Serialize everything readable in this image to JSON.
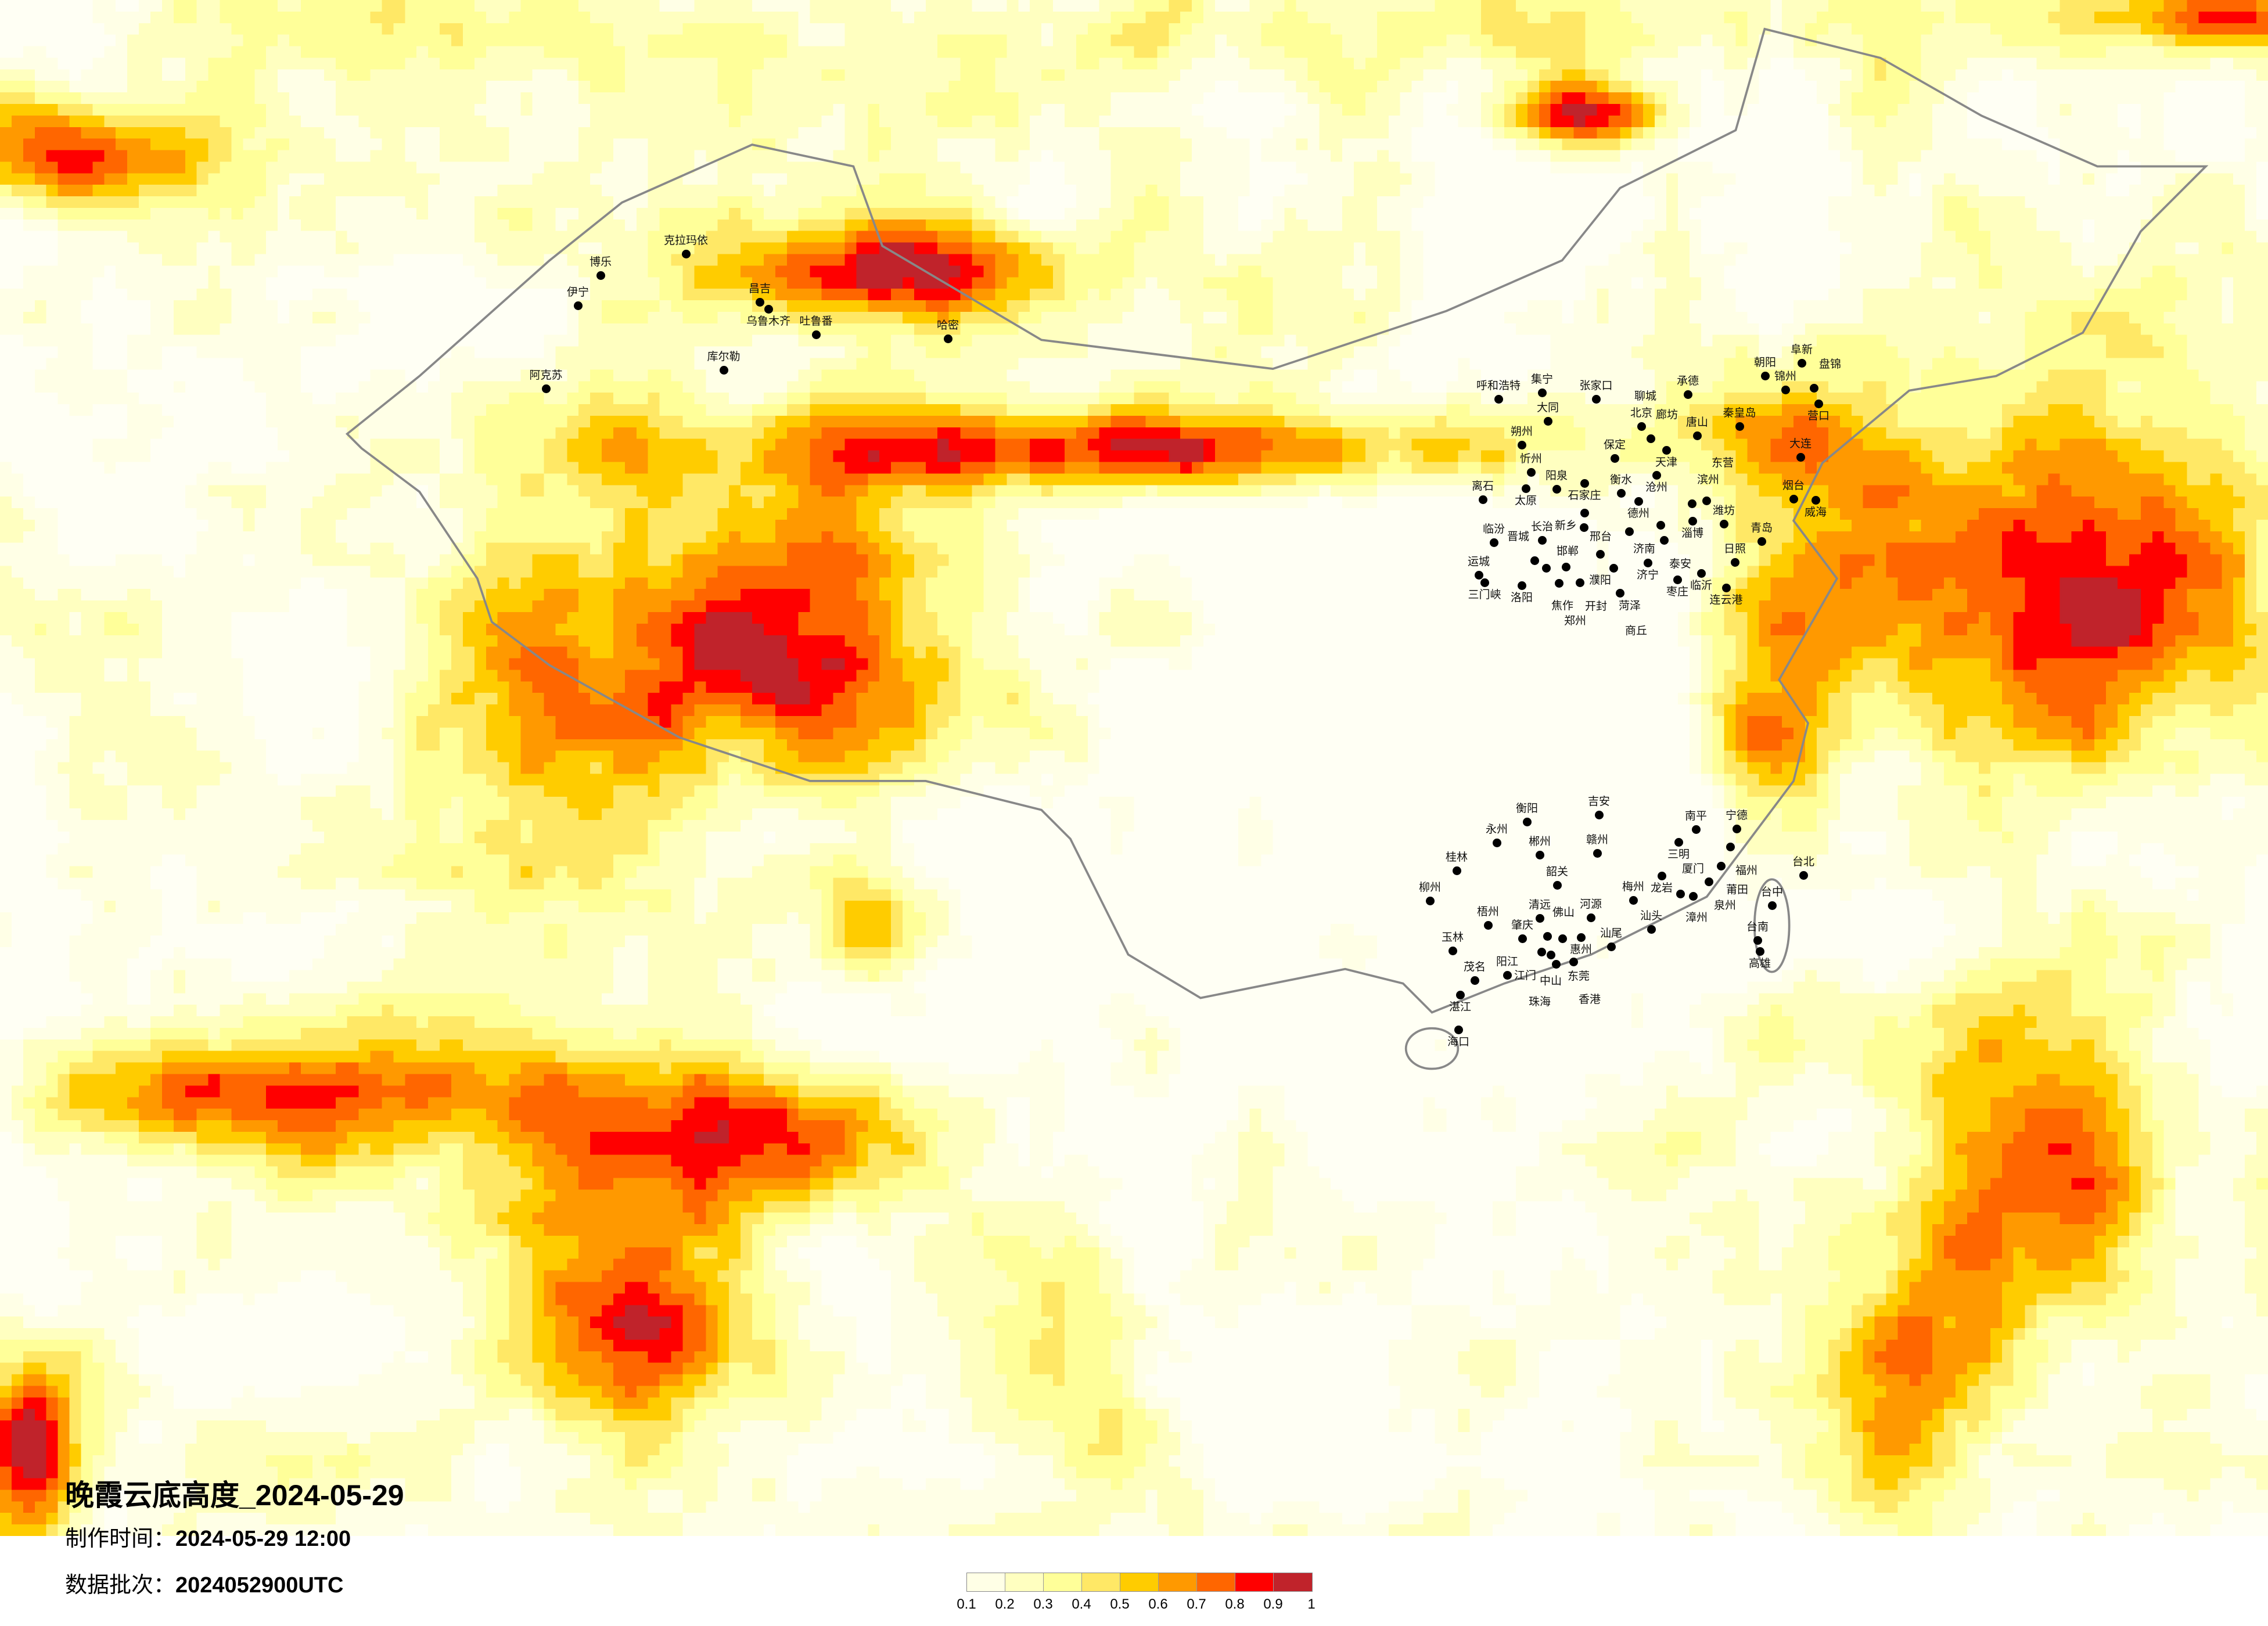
{
  "title": "晚霞云底高度_2024-05-29",
  "production_time": {
    "label": "制作时间：",
    "value": "2024-05-29 12:00"
  },
  "data_batch": {
    "label": "数据批次：",
    "value": "2024052900UTC"
  },
  "legend": {
    "labels": [
      "0.1",
      "0.2",
      "0.3",
      "0.4",
      "0.5",
      "0.6",
      "0.7",
      "0.8",
      "0.9",
      "1"
    ],
    "colors": [
      "#FFFFE6",
      "#FFFFC0",
      "#FFFF99",
      "#FFE866",
      "#FFCC00",
      "#FF9900",
      "#FF6600",
      "#FF0000",
      "#C0232B"
    ]
  },
  "map": {
    "type": "heatmap",
    "background_color": "#FFFFEE",
    "border_color": "#888888",
    "city_marker": "black-dot"
  },
  "cities": [
    "呼和浩特",
    "集宁",
    "张家口",
    "承德",
    "朝阳",
    "阜新",
    "锦州",
    "盘锦",
    "营口",
    "大同",
    "北京",
    "廊坊",
    "天津",
    "唐山",
    "秦皇岛",
    "大连",
    "保定",
    "朔州",
    "忻州",
    "太原",
    "阳泉",
    "石家庄",
    "沧州",
    "衡水",
    "德州",
    "离石",
    "滨州",
    "东营",
    "烟台",
    "威海",
    "邢台",
    "邯郸",
    "济南",
    "淄博",
    "潍坊",
    "聊城",
    "泰安",
    "青岛",
    "临汾",
    "长治",
    "晋城",
    "焦作",
    "新乡",
    "濮阳",
    "菏泽",
    "济宁",
    "日照",
    "临沂",
    "枣庄",
    "连云港",
    "运城",
    "三门峡",
    "洛阳",
    "郑州",
    "开封",
    "商丘",
    "吉安",
    "衡阳",
    "永州",
    "郴州",
    "赣州",
    "桂林",
    "韶关",
    "柳州",
    "梅州",
    "清远",
    "河源",
    "梧州",
    "肇庆",
    "佛山",
    "东莞",
    "惠州",
    "江门",
    "中山",
    "香港",
    "珠海",
    "汕尾",
    "汕头",
    "玉林",
    "阳江",
    "茂名",
    "湛江",
    "海口",
    "南平",
    "宁德",
    "三明",
    "福州",
    "莆田",
    "龙岩",
    "泉州",
    "漳州",
    "厦门",
    "台北",
    "台中",
    "台南",
    "高雄",
    "克拉玛依",
    "博乐",
    "伊宁",
    "昌吉",
    "乌鲁木齐",
    "吐鲁番",
    "哈密",
    "库尔勒",
    "阿克苏"
  ]
}
